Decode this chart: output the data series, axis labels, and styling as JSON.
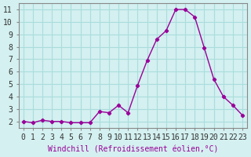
{
  "x": [
    0,
    1,
    2,
    3,
    4,
    5,
    6,
    7,
    8,
    9,
    10,
    11,
    12,
    13,
    14,
    15,
    16,
    17,
    18,
    19,
    20,
    21,
    22,
    23
  ],
  "y": [
    2.0,
    1.9,
    2.1,
    2.0,
    2.0,
    1.9,
    1.9,
    1.9,
    2.8,
    2.7,
    3.3,
    2.7,
    4.9,
    6.9,
    8.6,
    9.3,
    11.0,
    11.0,
    10.4,
    7.9,
    5.4,
    4.0,
    3.3,
    2.5
  ],
  "line_color": "#990099",
  "marker": "P",
  "xlabel": "Windchill (Refroidissement éolien,°C)",
  "ylabel_ticks": [
    2,
    3,
    4,
    5,
    6,
    7,
    8,
    9,
    10,
    11
  ],
  "xlim": [
    -0.5,
    23.5
  ],
  "ylim": [
    1.5,
    11.5
  ],
  "background_color": "#d4f0f0",
  "grid_color": "#aadddd",
  "xlabel_fontsize": 7,
  "tick_fontsize": 7,
  "line_width": 1.0,
  "marker_size": 3
}
